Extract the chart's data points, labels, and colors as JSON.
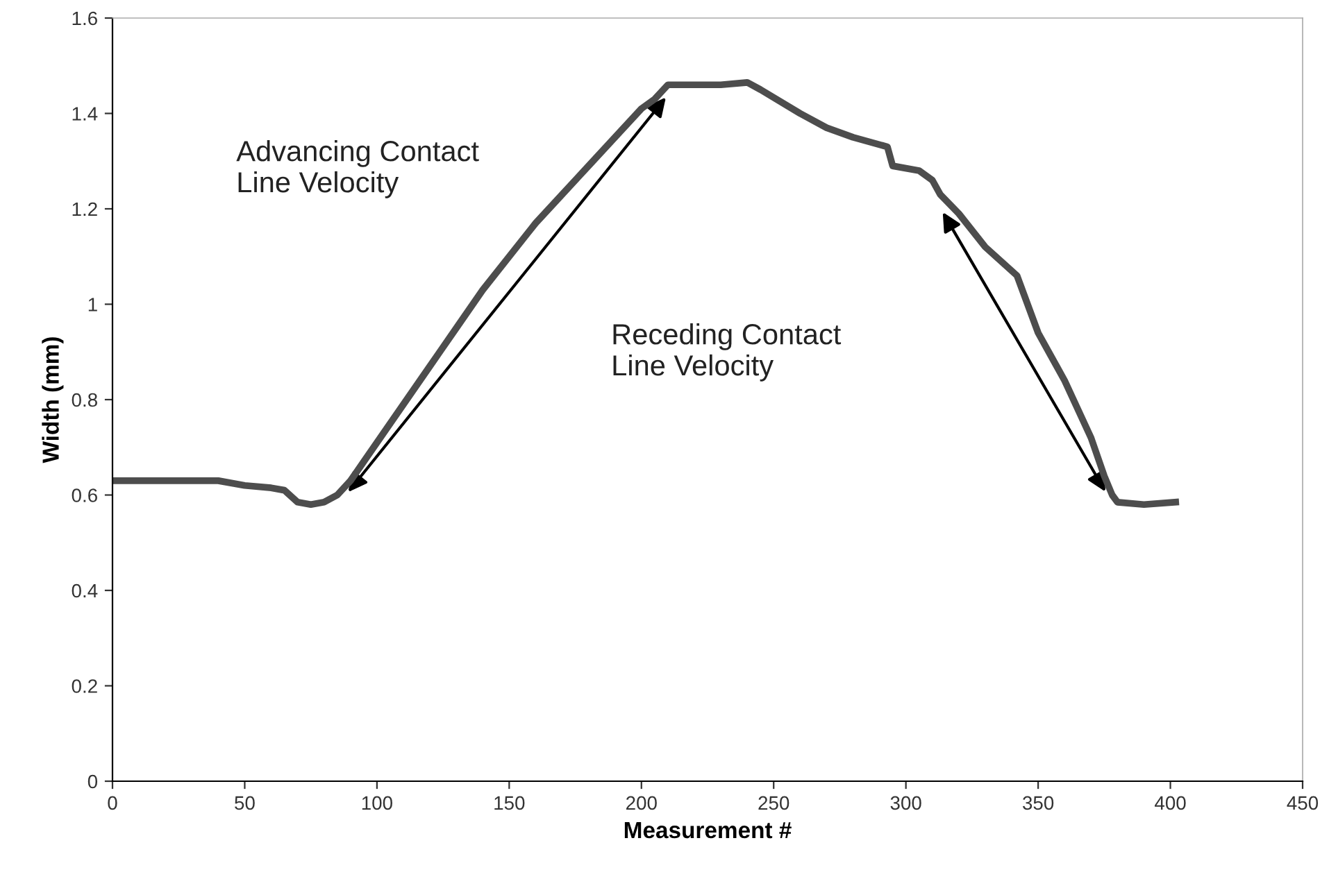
{
  "chart_data": {
    "type": "line",
    "xlabel": "Measurement #",
    "ylabel": "Width (mm)",
    "x": [
      0,
      20,
      40,
      50,
      60,
      65,
      70,
      75,
      80,
      85,
      90,
      95,
      100,
      110,
      120,
      130,
      140,
      150,
      160,
      170,
      180,
      190,
      200,
      205,
      210,
      220,
      230,
      240,
      245,
      260,
      270,
      280,
      293,
      295,
      305,
      310,
      313,
      320,
      330,
      342,
      350,
      360,
      370,
      375,
      378,
      380,
      390,
      402
    ],
    "series": [
      {
        "color": "#4d4d4d",
        "values": [
          0.63,
          0.63,
          0.63,
          0.62,
          0.615,
          0.61,
          0.585,
          0.58,
          0.585,
          0.6,
          0.63,
          0.67,
          0.71,
          0.79,
          0.87,
          0.95,
          1.03,
          1.1,
          1.17,
          1.23,
          1.29,
          1.35,
          1.41,
          1.43,
          1.46,
          1.46,
          1.46,
          1.465,
          1.45,
          1.4,
          1.37,
          1.35,
          1.33,
          1.29,
          1.28,
          1.26,
          1.23,
          1.19,
          1.12,
          1.06,
          0.94,
          0.84,
          0.72,
          0.64,
          0.6,
          0.585,
          0.58,
          0.585
        ]
      }
    ],
    "annotations": [
      "Advancing Contact\nLine Velocity",
      "Receding Contact\nLine Velocity"
    ],
    "xlim": [
      0,
      450
    ],
    "xticks": [
      0,
      50,
      100,
      150,
      200,
      250,
      300,
      350,
      400,
      450
    ],
    "ylim": [
      0,
      1.6
    ],
    "yticks": [
      0,
      0.2,
      0.4,
      0.6,
      0.8,
      1,
      1.2,
      1.4,
      1.6
    ],
    "grid": false,
    "legend": false,
    "marker": "none",
    "line_style": "solid"
  }
}
